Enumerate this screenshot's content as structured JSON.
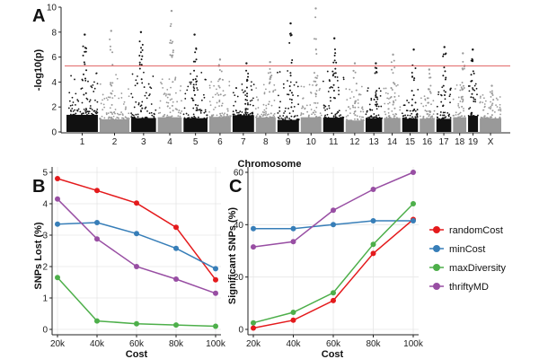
{
  "chart_data": [
    {
      "panel": "A",
      "type": "scatter",
      "subtype": "manhattan",
      "xlabel": "Chromosome",
      "ylabel": "-log10(p)",
      "ylim": [
        0,
        10
      ],
      "yticks": [
        0,
        2,
        4,
        6,
        8,
        10
      ],
      "chromosomes": [
        "1",
        "2",
        "3",
        "4",
        "5",
        "6",
        "7",
        "8",
        "9",
        "10",
        "11",
        "12",
        "13",
        "14",
        "15",
        "16",
        "17",
        "18",
        "19",
        "X"
      ],
      "chromosome_colors": [
        "#111111",
        "#999999"
      ],
      "threshold": 5.3,
      "threshold_color": "#e06060",
      "peak_values": [
        7.8,
        8.1,
        8.0,
        9.7,
        7.8,
        5.8,
        5.5,
        5.6,
        8.7,
        9.9,
        7.5,
        5.5,
        5.5,
        6.2,
        6.6,
        5.0,
        6.8,
        6.3,
        6.6,
        3.7
      ],
      "background_max": [
        4.8,
        4.6,
        4.8,
        4.4,
        4.8,
        4.2,
        4.2,
        3.8,
        5.0,
        4.0,
        5.2,
        4.1,
        3.6,
        3.9,
        3.5,
        2.9,
        4.0,
        3.9,
        3.9,
        3.0
      ]
    },
    {
      "panel": "B",
      "type": "line",
      "xlabel": "Cost",
      "ylabel": "SNPs Lost (%)",
      "categories": [
        "20k",
        "40k",
        "60k",
        "80k",
        "100k"
      ],
      "ylim": [
        0,
        5
      ],
      "yticks": [
        0,
        1,
        2,
        3,
        4,
        5
      ],
      "series": [
        {
          "name": "randomCost",
          "color": "#e41a1c",
          "values": [
            4.8,
            4.42,
            4.02,
            3.25,
            1.58
          ]
        },
        {
          "name": "minCost",
          "color": "#377eb8",
          "values": [
            3.35,
            3.4,
            3.05,
            2.58,
            1.93
          ]
        },
        {
          "name": "maxDiversity",
          "color": "#4daf4a",
          "values": [
            1.65,
            0.27,
            0.18,
            0.14,
            0.1
          ]
        },
        {
          "name": "thriftyMD",
          "color": "#984ea3",
          "values": [
            4.15,
            2.88,
            2.0,
            1.6,
            1.15
          ]
        }
      ]
    },
    {
      "panel": "C",
      "type": "line",
      "xlabel": "Cost",
      "ylabel": "Significant SNPs (%)",
      "categories": [
        "20k",
        "40k",
        "60k",
        "80k",
        "100k"
      ],
      "ylim": [
        0,
        60
      ],
      "yticks": [
        0,
        20,
        40,
        60
      ],
      "series": [
        {
          "name": "randomCost",
          "color": "#e41a1c",
          "values": [
            0.5,
            3.5,
            11.0,
            29.0,
            42.0
          ]
        },
        {
          "name": "minCost",
          "color": "#377eb8",
          "values": [
            38.5,
            38.5,
            40.0,
            41.5,
            41.5
          ]
        },
        {
          "name": "maxDiversity",
          "color": "#4daf4a",
          "values": [
            2.5,
            6.5,
            14.0,
            32.5,
            48.0
          ]
        },
        {
          "name": "thriftyMD",
          "color": "#984ea3",
          "values": [
            31.5,
            33.5,
            45.5,
            53.5,
            60.0
          ]
        }
      ],
      "legend": "right"
    }
  ]
}
